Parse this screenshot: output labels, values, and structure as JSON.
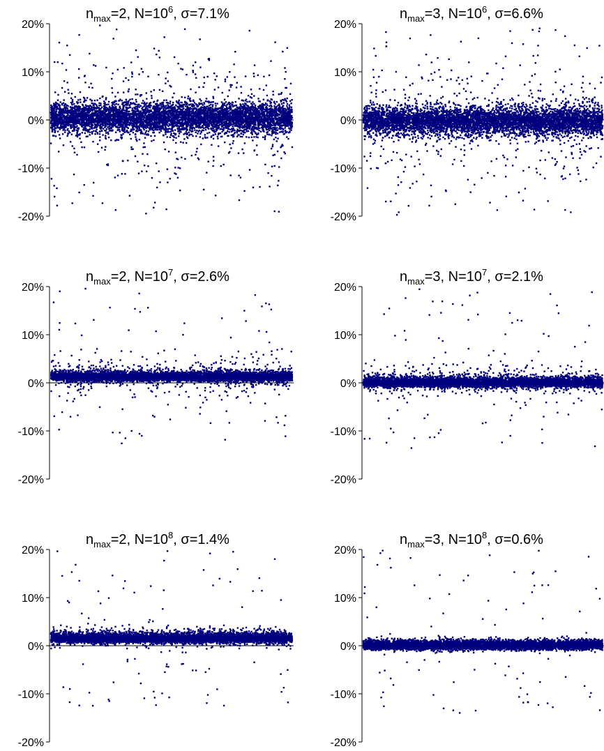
{
  "chart_data": [
    {
      "type": "scatter",
      "title": "n<sub>max</sub>=2, N=10<sup>6</sup>, σ=7.1%",
      "title_parts": {
        "n_sub": "max",
        "n_val": "2",
        "N_base": "10",
        "N_exp": "6",
        "sigma": "7.1%"
      },
      "ylim": [
        -20,
        20
      ],
      "yticks": [
        "20%",
        "10%",
        "0%",
        "-10%",
        "-20%"
      ],
      "ytick_values": [
        20,
        10,
        0,
        -10,
        -20
      ],
      "x_range": [
        0,
        1
      ],
      "sigma_percent": 7.1,
      "point_color": "#00007f",
      "point_count": 6000,
      "center_value": 0.5
    },
    {
      "type": "scatter",
      "title_parts": {
        "n_sub": "max",
        "n_val": "3",
        "N_base": "10",
        "N_exp": "6",
        "sigma": "6.6%"
      },
      "ylim": [
        -20,
        20
      ],
      "yticks": [
        "20%",
        "10%",
        "0%",
        "-10%",
        "-20%"
      ],
      "ytick_values": [
        20,
        10,
        0,
        -10,
        -20
      ],
      "x_range": [
        0,
        1
      ],
      "sigma_percent": 6.6,
      "point_color": "#00007f",
      "point_count": 6000,
      "center_value": -0.2
    },
    {
      "type": "scatter",
      "title_parts": {
        "n_sub": "max",
        "n_val": "2",
        "N_base": "10",
        "N_exp": "7",
        "sigma": "2.6%"
      },
      "ylim": [
        -20,
        20
      ],
      "yticks": [
        "20%",
        "10%",
        "0%",
        "-10%",
        "-20%"
      ],
      "ytick_values": [
        20,
        10,
        0,
        -10,
        -20
      ],
      "x_range": [
        0,
        1
      ],
      "sigma_percent": 2.6,
      "point_color": "#00007f",
      "point_count": 6000,
      "center_value": 1.2
    },
    {
      "type": "scatter",
      "title_parts": {
        "n_sub": "max",
        "n_val": "3",
        "N_base": "10",
        "N_exp": "7",
        "sigma": "2.1%"
      },
      "ylim": [
        -20,
        20
      ],
      "yticks": [
        "20%",
        "10%",
        "0%",
        "-10%",
        "-20%"
      ],
      "ytick_values": [
        20,
        10,
        0,
        -10,
        -20
      ],
      "x_range": [
        0,
        1
      ],
      "sigma_percent": 2.1,
      "point_color": "#00007f",
      "point_count": 6000,
      "center_value": 0.0
    },
    {
      "type": "scatter",
      "title_parts": {
        "n_sub": "max",
        "n_val": "2",
        "N_base": "10",
        "N_exp": "8",
        "sigma": "1.4%"
      },
      "ylim": [
        -20,
        20
      ],
      "yticks": [
        "20%",
        "10%",
        "0%",
        "-10%",
        "-20%"
      ],
      "ytick_values": [
        20,
        10,
        0,
        -10,
        -20
      ],
      "x_range": [
        0,
        1
      ],
      "sigma_percent": 1.4,
      "point_color": "#00007f",
      "point_count": 6000,
      "center_value": 1.5
    },
    {
      "type": "scatter",
      "title_parts": {
        "n_sub": "max",
        "n_val": "3",
        "N_base": "10",
        "N_exp": "8",
        "sigma": "0.6%"
      },
      "ylim": [
        -20,
        20
      ],
      "yticks": [
        "20%",
        "10%",
        "0%",
        "-10%",
        "-20%"
      ],
      "ytick_values": [
        20,
        10,
        0,
        -10,
        -20
      ],
      "x_range": [
        0,
        1
      ],
      "sigma_percent": 0.6,
      "point_color": "#00007f",
      "point_count": 6000,
      "center_value": 0.0
    }
  ]
}
